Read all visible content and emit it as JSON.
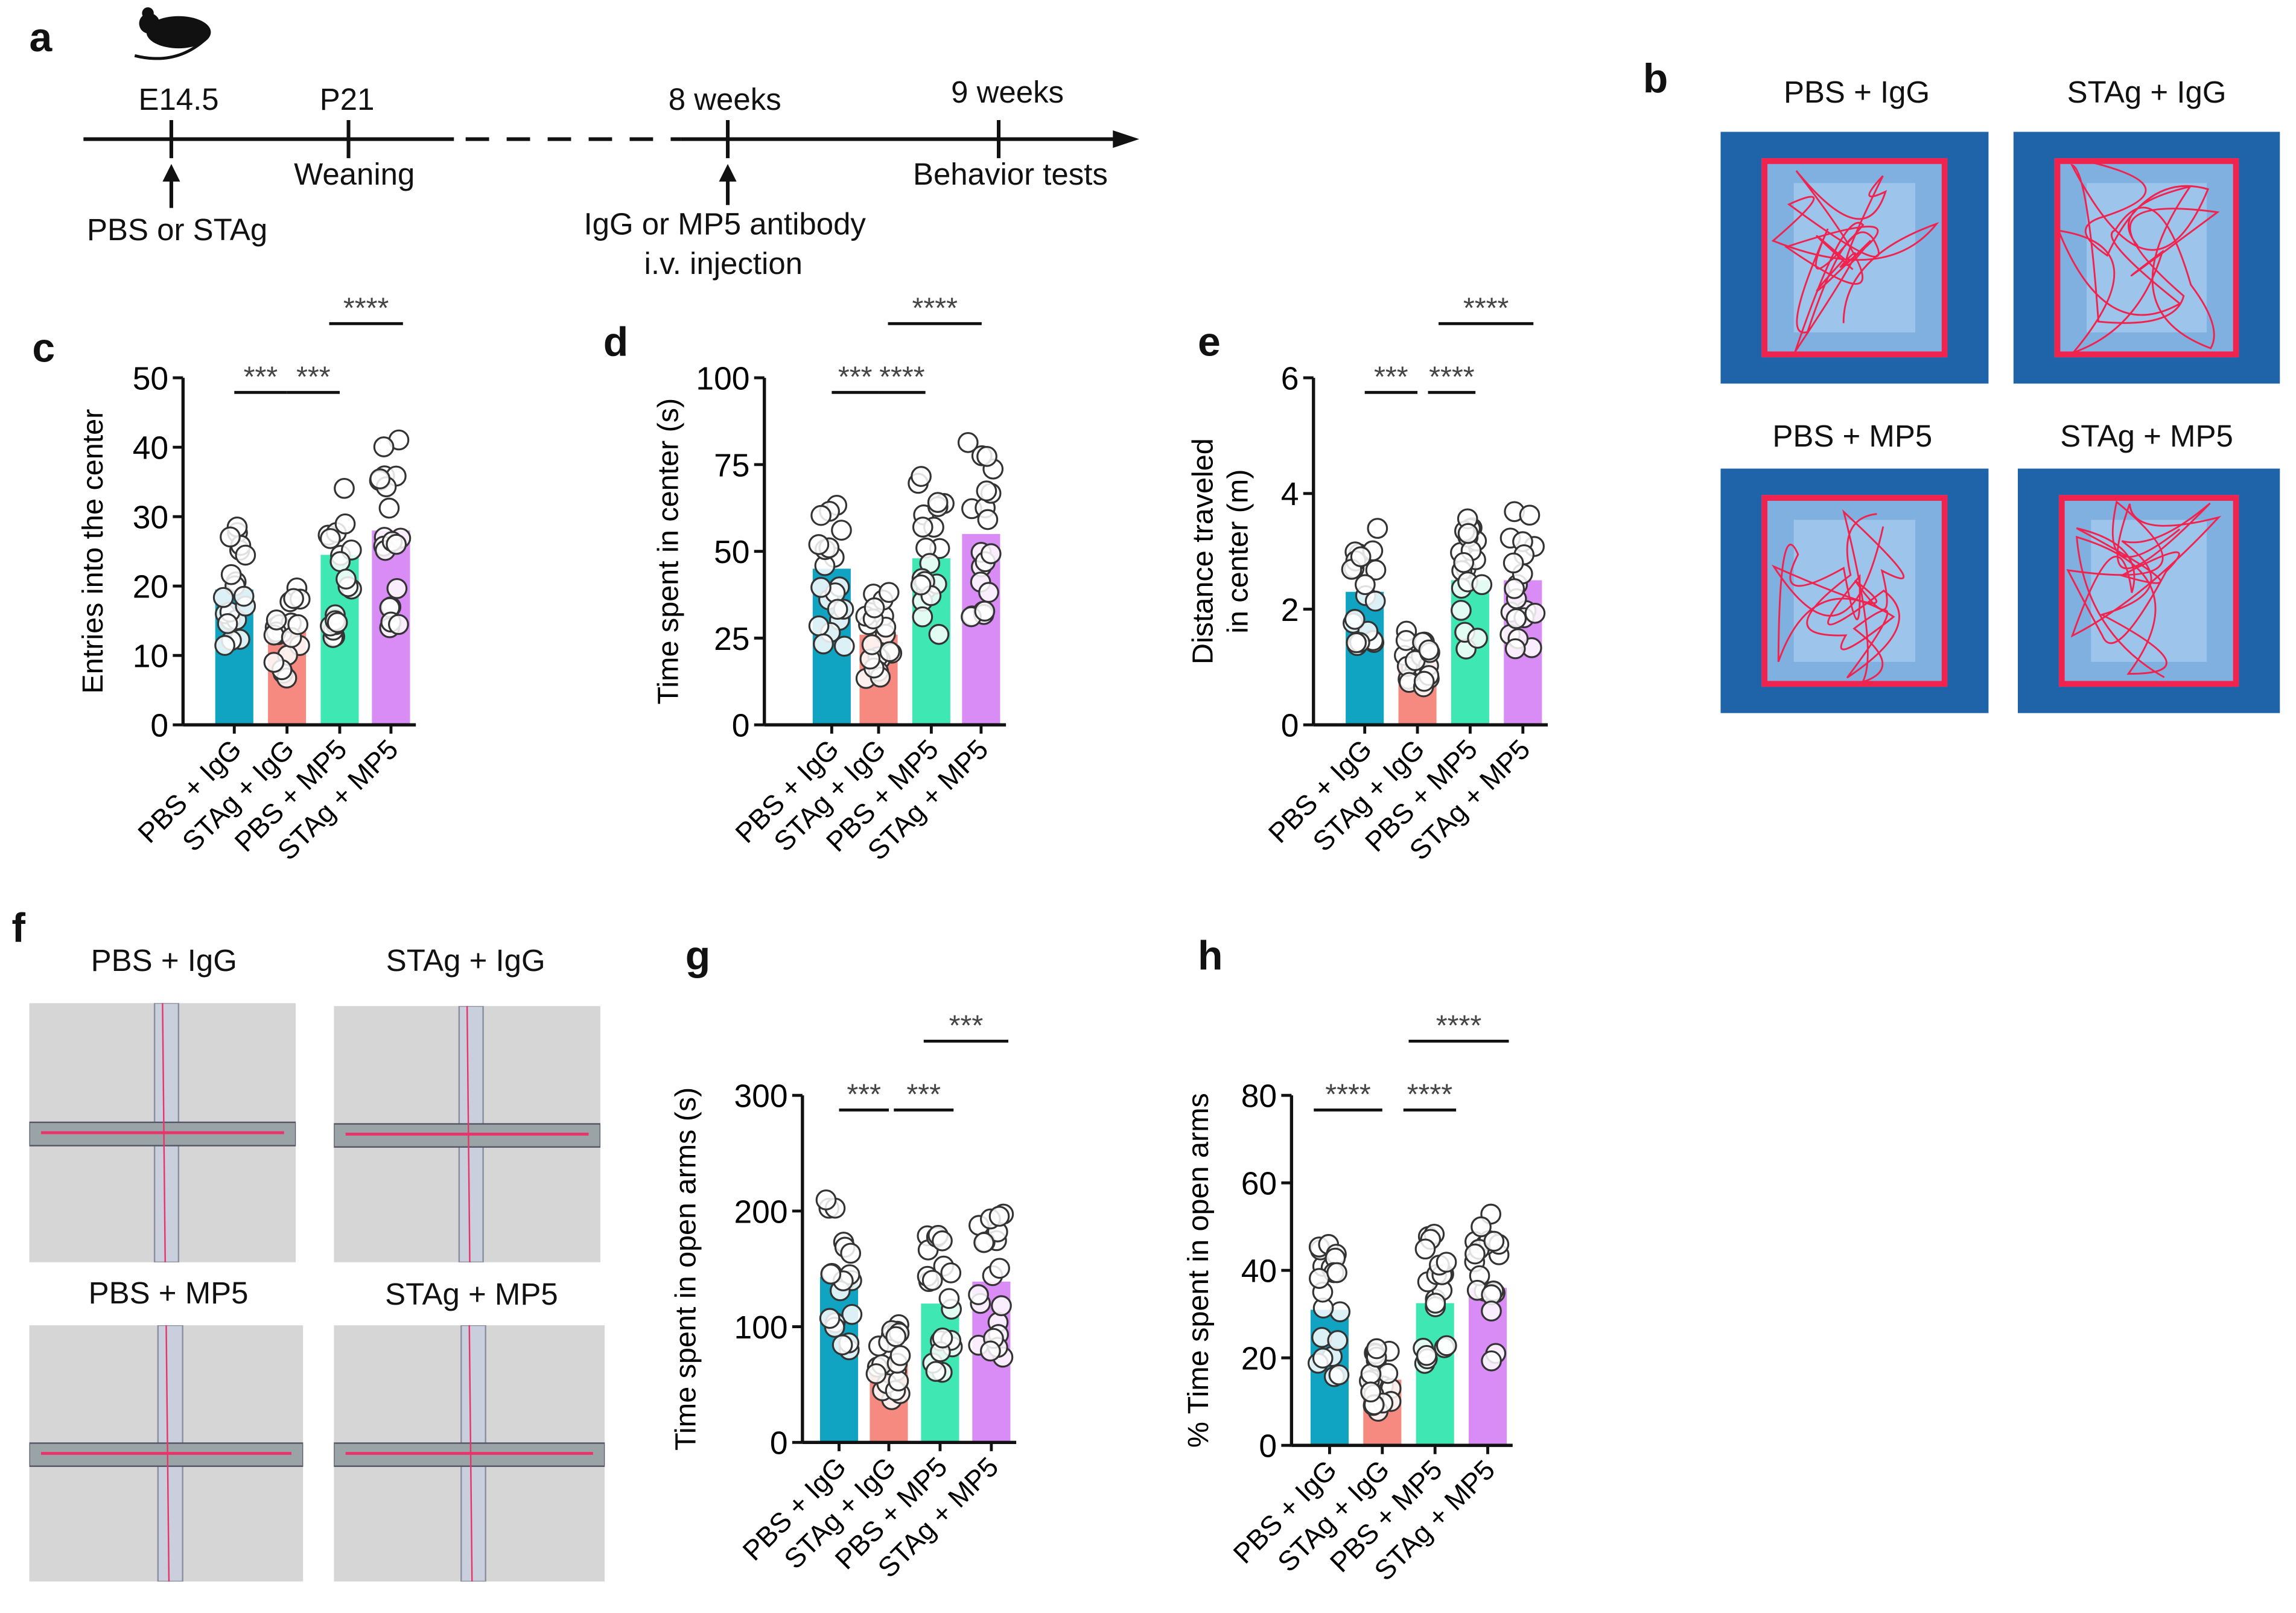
{
  "panels": {
    "a": "a",
    "b": "b",
    "c": "c",
    "d": "d",
    "e": "e",
    "f": "f",
    "g": "g",
    "h": "h"
  },
  "timeline": {
    "points": [
      "E14.5",
      "P21",
      "8 weeks",
      "9 weeks"
    ],
    "below": [
      "Weaning",
      "Behavior tests"
    ],
    "arrow_labels": {
      "first": "PBS or STAg",
      "second_line1": "IgG or MP5 antibody",
      "second_line2": "i.v. injection"
    },
    "icon": "mouse-icon"
  },
  "open_field": {
    "titles": [
      "PBS + IgG",
      "STAg + IgG",
      "PBS + MP5",
      "STAg + MP5"
    ]
  },
  "plus_maze": {
    "titles": [
      "PBS + IgG",
      "STAg + IgG",
      "PBS + MP5",
      "STAg + MP5"
    ]
  },
  "colors": {
    "PBS + IgG": "#10a4c2",
    "STAg + IgG": "#f78a80",
    "PBS + MP5": "#3fe8b2",
    "STAg + MP5": "#d98bf6"
  },
  "chart_data": [
    {
      "id": "c",
      "type": "bar",
      "categories": [
        "PBS + IgG",
        "STAg + IgG",
        "PBS + MP5",
        "STAg + MP5"
      ],
      "values": [
        19.5,
        13.5,
        24.5,
        28
      ],
      "ylabel": "Entries into the center",
      "ylim": [
        0,
        50
      ],
      "yticks": [
        0,
        10,
        20,
        30,
        40,
        50
      ],
      "significance": [
        {
          "from": 0,
          "to": 1,
          "label": "***"
        },
        {
          "from": 1,
          "to": 2,
          "label": "***"
        },
        {
          "from": 1.8,
          "to": 3.2,
          "label": "****"
        }
      ]
    },
    {
      "id": "d",
      "type": "bar",
      "categories": [
        "PBS + IgG",
        "STAg + IgG",
        "PBS + MP5",
        "STAg + MP5"
      ],
      "values": [
        45,
        26,
        48,
        55
      ],
      "ylabel": "Time spent in center (s)",
      "ylim": [
        0,
        100
      ],
      "yticks": [
        0,
        25,
        50,
        75,
        100
      ],
      "significance": [
        {
          "from": 0,
          "to": 1,
          "label": "***"
        },
        {
          "from": 1,
          "to": 2,
          "label": "****"
        },
        {
          "from": 1.2,
          "to": 3.2,
          "label": "****"
        }
      ]
    },
    {
      "id": "e",
      "type": "bar",
      "categories": [
        "PBS + IgG",
        "STAg + IgG",
        "PBS + MP5",
        "STAg + MP5"
      ],
      "values": [
        2.3,
        1.1,
        2.5,
        2.5
      ],
      "ylabel": [
        "Distance traveled",
        "in center (m)"
      ],
      "ylim": [
        0,
        6
      ],
      "yticks": [
        0,
        2,
        4,
        6
      ],
      "significance": [
        {
          "from": 0,
          "to": 1,
          "label": "***"
        },
        {
          "from": 1.2,
          "to": 2.1,
          "label": "****"
        },
        {
          "from": 1.4,
          "to": 3.2,
          "label": "****"
        }
      ]
    },
    {
      "id": "g",
      "type": "bar",
      "categories": [
        "PBS + IgG",
        "STAg + IgG",
        "PBS + MP5",
        "STAg + MP5"
      ],
      "values": [
        143,
        70,
        120,
        139
      ],
      "ylabel": "Time spent in open arms (s)",
      "ylim": [
        0,
        300
      ],
      "yticks": [
        0,
        100,
        200,
        300
      ],
      "significance": [
        {
          "from": 0,
          "to": 1,
          "label": "***"
        },
        {
          "from": 1.1,
          "to": 2.3,
          "label": "***"
        },
        {
          "from": 1.7,
          "to": 3.4,
          "label": "***"
        }
      ]
    },
    {
      "id": "h",
      "type": "bar",
      "categories": [
        "PBS + IgG",
        "STAg + IgG",
        "PBS + MP5",
        "STAg + MP5"
      ],
      "values": [
        31,
        15,
        32.5,
        36
      ],
      "ylabel": "% Time spent in open arms",
      "ylim": [
        0,
        80
      ],
      "yticks": [
        0,
        20,
        40,
        60,
        80
      ],
      "significance": [
        {
          "from": -0.3,
          "to": 1,
          "label": "****"
        },
        {
          "from": 1.4,
          "to": 2.4,
          "label": "****"
        },
        {
          "from": 1.5,
          "to": 3.4,
          "label": "****"
        }
      ]
    }
  ]
}
